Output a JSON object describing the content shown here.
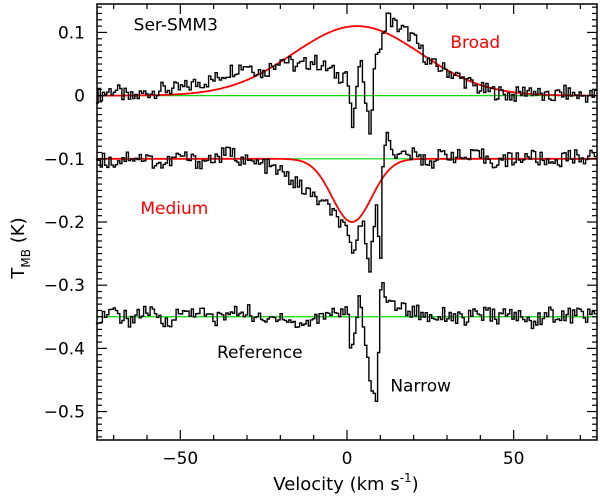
{
  "chart_data": {
    "type": "line",
    "title": "Ser-SMM3",
    "xlabel": {
      "main": "Velocity (km s",
      "sup": "-1",
      "tail": ")"
    },
    "ylabel": {
      "main": "T",
      "sub": "MB",
      "tail": " (K)"
    },
    "xlim": [
      -75,
      75
    ],
    "ylim": [
      -0.545,
      0.145
    ],
    "xticks": [
      {
        "value": -50,
        "label": "−50"
      },
      {
        "value": 0,
        "label": "0"
      },
      {
        "value": 50,
        "label": "50"
      }
    ],
    "yticks": [
      {
        "value": 0.1,
        "label": "0.1"
      },
      {
        "value": 0,
        "label": "0"
      },
      {
        "value": -0.1,
        "label": "−0.1"
      },
      {
        "value": -0.2,
        "label": "−0.2"
      },
      {
        "value": -0.3,
        "label": "−0.3"
      },
      {
        "value": -0.4,
        "label": "−0.4"
      },
      {
        "value": -0.5,
        "label": "−0.5"
      }
    ],
    "baselines": [
      0,
      -0.1,
      -0.35
    ],
    "series": [
      {
        "name": "spectrum-top",
        "offset": 0,
        "x": [
          -75,
          -70,
          -65,
          -60,
          -55,
          -50,
          -45,
          -40,
          -35,
          -30,
          -25,
          -20,
          -15,
          -10,
          -5,
          -2,
          0,
          1,
          2,
          3,
          4,
          5,
          6,
          7,
          8,
          9,
          10,
          11,
          12,
          13,
          15,
          18,
          20,
          25,
          30,
          35,
          40,
          45,
          50,
          55,
          60,
          65,
          70,
          75
        ],
        "y": [
          0,
          0.01,
          -0.005,
          0.005,
          0.01,
          0.01,
          0.02,
          0.025,
          0.04,
          0.05,
          0.035,
          0.06,
          0.045,
          0.055,
          0.04,
          0.03,
          0.04,
          -0.02,
          -0.06,
          0.02,
          0.05,
          0.03,
          -0.02,
          -0.06,
          0.02,
          0.08,
          0.06,
          0.1,
          0.13,
          0.12,
          0.11,
          0.1,
          0.09,
          0.05,
          0.04,
          0.025,
          0.01,
          0.005,
          0,
          0.01,
          -0.005,
          0.005,
          0,
          0
        ]
      },
      {
        "name": "spectrum-middle",
        "offset": -0.1,
        "x": [
          -75,
          -70,
          -65,
          -60,
          -55,
          -50,
          -45,
          -40,
          -35,
          -30,
          -25,
          -20,
          -15,
          -10,
          -5,
          -2,
          0,
          1,
          2,
          3,
          4,
          5,
          6,
          7,
          8,
          9,
          10,
          11,
          12,
          13,
          15,
          18,
          20,
          25,
          30,
          35,
          40,
          45,
          50,
          55,
          60,
          65,
          70,
          75
        ],
        "y": [
          0,
          -0.005,
          0.005,
          0,
          -0.01,
          0.005,
          -0.005,
          0,
          0.01,
          -0.005,
          -0.01,
          -0.02,
          -0.04,
          -0.06,
          -0.08,
          -0.1,
          -0.12,
          -0.14,
          -0.16,
          -0.12,
          -0.1,
          -0.11,
          -0.14,
          -0.17,
          -0.1,
          -0.08,
          -0.18,
          0.02,
          0.04,
          0.03,
          0,
          0.01,
          0.005,
          -0.005,
          0.01,
          0,
          0.005,
          -0.005,
          0,
          0.005,
          -0.005,
          0,
          0.005,
          0
        ]
      },
      {
        "name": "spectrum-reference",
        "offset": -0.35,
        "x": [
          -75,
          -70,
          -65,
          -60,
          -55,
          -50,
          -45,
          -40,
          -35,
          -30,
          -25,
          -20,
          -15,
          -10,
          -5,
          -2,
          0,
          1,
          2,
          3,
          4,
          5,
          6,
          7,
          8,
          9,
          10,
          11,
          12,
          13,
          15,
          18,
          20,
          25,
          30,
          35,
          40,
          45,
          50,
          55,
          60,
          65,
          70,
          75
        ],
        "y": [
          0,
          0.005,
          -0.005,
          0.01,
          -0.01,
          0.005,
          0.01,
          -0.005,
          0.005,
          0.01,
          -0.01,
          0.005,
          -0.015,
          -0.005,
          0.01,
          0.005,
          0.02,
          -0.04,
          -0.06,
          0.01,
          0.03,
          -0.03,
          -0.06,
          -0.1,
          -0.12,
          -0.14,
          0.05,
          0.04,
          0.03,
          0.02,
          0.02,
          0.01,
          0.01,
          0,
          0.005,
          -0.005,
          0.005,
          0,
          0.005,
          -0.01,
          0.005,
          0,
          0.005,
          0
        ]
      },
      {
        "name": "gaussian-broad",
        "offset": 0,
        "gaussian": {
          "amplitude": 0.11,
          "center": 3,
          "fwhm": 45
        }
      },
      {
        "name": "gaussian-medium",
        "offset": -0.1,
        "gaussian": {
          "amplitude": -0.1,
          "center": 1.5,
          "fwhm": 14
        }
      }
    ],
    "annotations": [
      {
        "text": "Ser-SMM3",
        "x": -64,
        "y": 0.103,
        "color": "#000000"
      },
      {
        "text": "Broad",
        "x": 31,
        "y": 0.075,
        "color": "#ff0000"
      },
      {
        "text": "Medium",
        "x": -62,
        "y": -0.187,
        "color": "#ff0000"
      },
      {
        "text": "Reference",
        "x": -39,
        "y": -0.415,
        "color": "#000000"
      },
      {
        "text": "Narrow",
        "x": 13,
        "y": -0.468,
        "color": "#000000"
      }
    ],
    "colors": {
      "data": "#000000",
      "fit": "#ff0000",
      "baseline": "#00dd00"
    }
  }
}
